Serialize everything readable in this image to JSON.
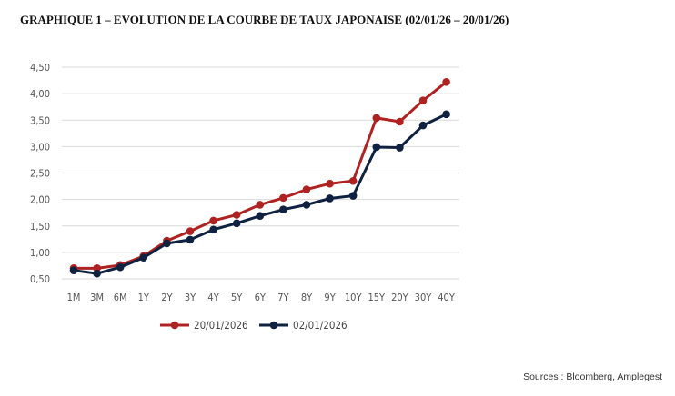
{
  "title": "GRAPHIQUE 1 – EVOLUTION DE LA COURBE DE TAUX JAPONAISE (02/01/26 – 20/01/26)",
  "source": "Sources : Bloomberg, Amplegest",
  "chart_data": {
    "type": "line",
    "categories": [
      "1M",
      "3M",
      "6M",
      "1Y",
      "2Y",
      "3Y",
      "4Y",
      "5Y",
      "6Y",
      "7Y",
      "8Y",
      "9Y",
      "10Y",
      "15Y",
      "20Y",
      "30Y",
      "40Y"
    ],
    "y_tick_labels": [
      "4,50",
      "4,00",
      "3,50",
      "3,00",
      "2,50",
      "2,00",
      "1,50",
      "1,00",
      "0,50"
    ],
    "y_ticks": [
      4.5,
      4.0,
      3.5,
      3.0,
      2.5,
      2.0,
      1.5,
      1.0,
      0.5
    ],
    "ylim": [
      0.5,
      4.5
    ],
    "grid": true,
    "legend_position": "bottom",
    "series": [
      {
        "name": "20/01/2026",
        "color": "#b02222",
        "values": [
          0.7,
          0.7,
          0.76,
          0.93,
          1.22,
          1.4,
          1.6,
          1.71,
          1.9,
          2.03,
          2.19,
          2.3,
          2.35,
          3.54,
          3.47,
          3.87,
          4.22
        ]
      },
      {
        "name": "02/01/2026",
        "color": "#0f2141",
        "values": [
          0.66,
          0.6,
          0.72,
          0.9,
          1.17,
          1.24,
          1.43,
          1.55,
          1.69,
          1.81,
          1.9,
          2.02,
          2.07,
          2.99,
          2.98,
          3.4,
          3.61
        ]
      }
    ]
  }
}
